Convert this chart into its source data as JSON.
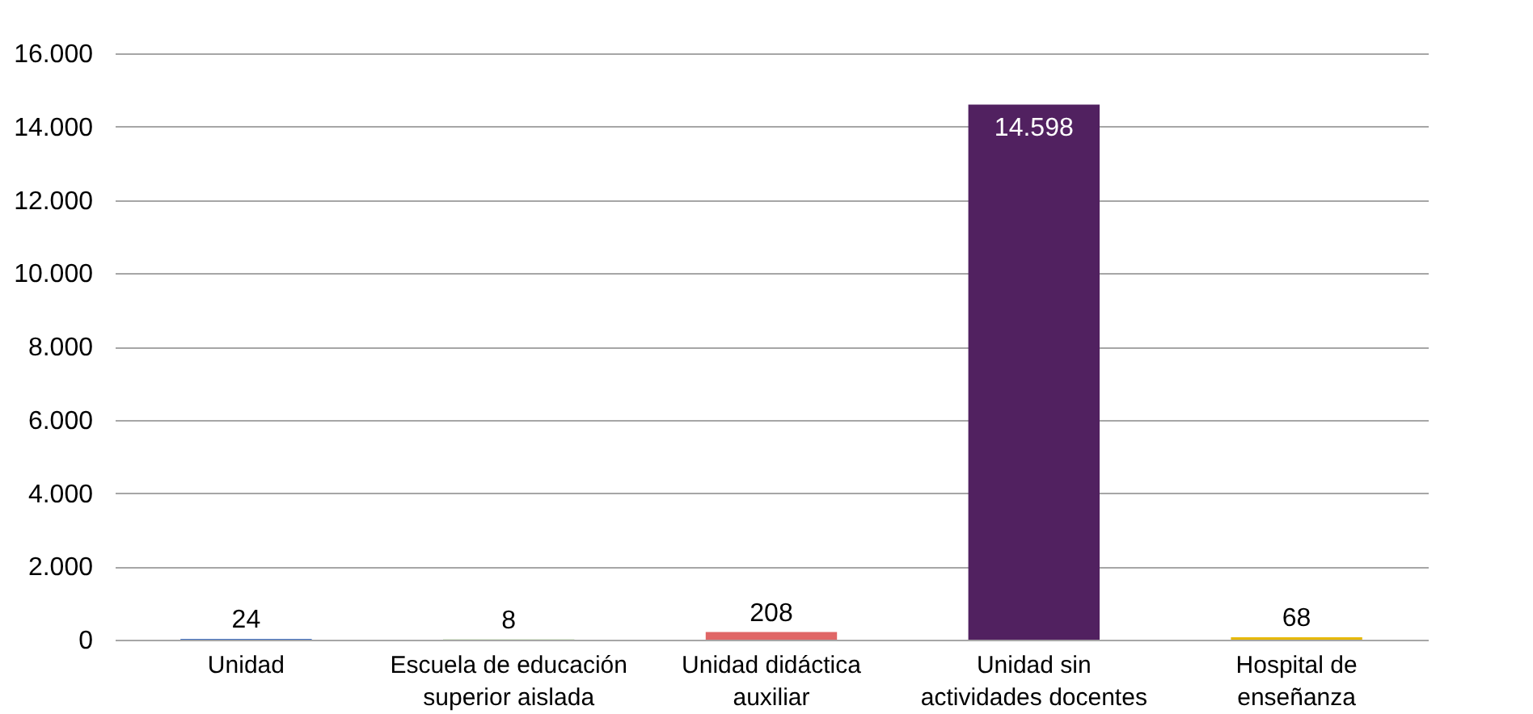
{
  "chart_data": {
    "type": "bar",
    "categories": [
      "Unidad",
      "Escuela de educación superior aislada",
      "Unidad didáctica auxiliar",
      "Unidad sin actividades docentes",
      "Hospital de enseñanza"
    ],
    "values": [
      24,
      8,
      208,
      14598,
      68
    ],
    "colors": [
      "#4472c4",
      "#70ad47",
      "#e06666",
      "#512160",
      "#e6b800"
    ],
    "value_labels": [
      "24",
      "8",
      "208",
      "14.598",
      "68"
    ],
    "ylim": [
      0,
      16000
    ],
    "yticks": [
      {
        "value": 0,
        "label": "0"
      },
      {
        "value": 2000,
        "label": "2.000"
      },
      {
        "value": 4000,
        "label": "4.000"
      },
      {
        "value": 6000,
        "label": "6.000"
      },
      {
        "value": 8000,
        "label": "8.000"
      },
      {
        "value": 10000,
        "label": "10.000"
      },
      {
        "value": 12000,
        "label": "12.000"
      },
      {
        "value": 14000,
        "label": "14.000"
      },
      {
        "value": 16000,
        "label": "16.000"
      }
    ],
    "grid": "y"
  }
}
